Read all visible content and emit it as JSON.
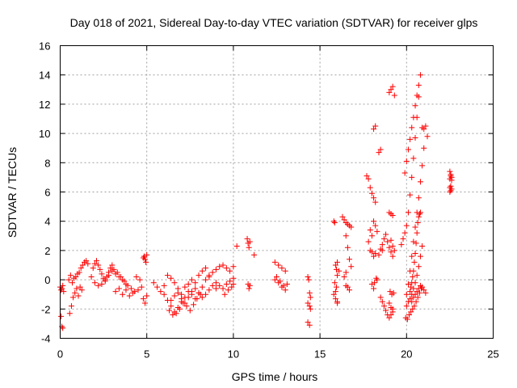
{
  "chart_data": {
    "type": "scatter",
    "title": "Day 018 of 2021, Sidereal Day-to-day VTEC variation (SDTVAR) for receiver glps",
    "xlabel": "GPS time / hours",
    "ylabel": "SDTVAR / TECUs",
    "xlim": [
      0,
      25
    ],
    "ylim": [
      -4,
      16
    ],
    "xticks": [
      0,
      5,
      10,
      15,
      20,
      25
    ],
    "yticks": [
      -4,
      -2,
      0,
      2,
      4,
      6,
      8,
      10,
      12,
      14,
      16
    ],
    "grid": true,
    "marker": "+",
    "series": [
      {
        "name": "SDTVAR",
        "color": "#ff0000",
        "x": [
          0.0,
          0.05,
          0.1,
          0.15,
          0.2,
          0.05,
          0.1,
          0.15,
          0.5,
          0.6,
          0.7,
          0.8,
          0.9,
          1.0,
          1.1,
          1.2,
          1.3,
          1.4,
          1.5,
          1.6,
          0.55,
          0.65,
          0.75,
          0.85,
          0.95,
          1.05,
          1.15,
          1.25,
          1.8,
          1.9,
          2.0,
          2.1,
          2.2,
          2.3,
          2.4,
          2.5,
          2.6,
          2.7,
          2.8,
          2.9,
          3.0,
          2.0,
          2.2,
          2.4,
          2.6,
          2.8,
          3.0,
          3.2,
          3.4,
          3.6,
          3.8,
          3.1,
          3.3,
          3.5,
          3.7,
          3.9,
          4.1,
          4.3,
          4.5,
          4.7,
          3.2,
          3.4,
          3.6,
          3.8,
          4.0,
          4.2,
          4.4,
          4.6,
          4.8,
          4.85,
          4.9,
          4.95,
          5.0,
          4.8,
          4.9,
          5.0,
          5.4,
          5.6,
          5.8,
          6.0,
          6.2,
          6.4,
          6.6,
          6.8,
          7.0,
          7.2,
          7.4,
          7.6,
          7.8,
          8.0,
          8.2,
          8.4,
          6.0,
          6.2,
          6.4,
          6.6,
          6.8,
          7.0,
          7.2,
          7.4,
          7.6,
          7.8,
          8.0,
          8.2,
          8.4,
          8.6,
          6.3,
          6.5,
          6.7,
          6.9,
          7.1,
          7.3,
          7.5,
          7.7,
          7.9,
          8.1,
          6.4,
          6.6,
          6.8,
          7.0,
          7.2,
          7.4,
          7.6,
          7.8,
          8.0,
          8.2,
          8.4,
          8.6,
          8.8,
          9.0,
          8.6,
          8.8,
          9.0,
          9.2,
          9.4,
          9.6,
          9.8,
          10.0,
          9.0,
          9.2,
          9.4,
          9.6,
          9.8,
          10.0,
          9.5,
          9.7,
          9.9,
          10.0,
          10.2,
          10.8,
          10.85,
          10.9,
          10.95,
          10.85,
          10.9,
          10.95,
          11.2,
          12.4,
          12.6,
          12.8,
          13.0,
          12.5,
          12.7,
          12.9,
          12.4,
          12.6,
          12.8,
          13.0,
          13.1,
          14.3,
          14.35,
          14.4,
          14.45,
          14.3,
          14.4,
          14.45,
          14.3,
          14.4,
          15.8,
          15.85,
          15.9,
          15.95,
          16.0,
          15.8,
          15.9,
          16.0,
          15.85,
          15.95,
          16.0,
          16.1,
          15.9,
          16.0,
          16.3,
          16.4,
          16.5,
          16.6,
          16.7,
          16.8,
          16.5,
          16.6,
          16.7,
          16.8,
          16.5,
          16.6,
          16.7,
          16.4,
          16.5,
          17.7,
          17.8,
          17.9,
          18.0,
          17.8,
          17.9,
          18.0,
          18.1,
          17.9,
          18.0,
          18.1,
          18.2,
          18.1,
          18.2,
          18.3,
          18.1,
          18.2,
          18.0,
          18.1,
          18.2,
          18.3,
          18.15,
          18.25,
          18.4,
          18.5,
          18.6,
          18.4,
          18.5,
          18.6,
          18.7,
          18.8,
          18.9,
          19.0,
          19.1,
          19.2,
          18.5,
          18.6,
          18.7,
          18.8,
          18.9,
          19.0,
          19.1,
          19.2,
          19.0,
          19.1,
          19.2,
          19.3,
          19.0,
          19.1,
          19.2,
          19.05,
          19.15,
          19.25,
          19.1,
          19.2,
          19.3,
          19.0,
          19.1,
          19.2,
          19.7,
          19.8,
          19.9,
          20.0,
          20.1,
          20.2,
          20.3,
          20.4,
          20.5,
          20.6,
          20.7,
          19.9,
          20.0,
          20.1,
          20.2,
          20.3,
          20.4,
          20.5,
          20.6,
          20.7,
          20.8,
          20.9,
          21.0,
          21.1,
          21.2,
          20.0,
          20.1,
          20.2,
          20.3,
          20.4,
          20.5,
          20.6,
          20.7,
          20.8,
          20.9,
          21.0,
          19.95,
          20.05,
          20.15,
          20.25,
          20.35,
          20.45,
          20.55,
          20.65,
          20.75,
          20.85,
          20.0,
          20.1,
          20.2,
          20.3,
          20.4,
          20.5,
          20.6,
          20.7,
          20.8,
          20.9,
          20.2,
          20.25,
          20.3,
          20.35,
          20.4,
          20.45,
          20.5,
          20.55,
          20.6,
          20.65,
          20.7,
          20.75,
          20.8,
          20.3,
          20.4,
          20.5,
          20.6,
          20.7,
          20.8,
          20.9,
          21.0,
          21.1,
          22.5,
          22.55,
          22.6,
          22.5,
          22.55,
          22.6,
          22.5,
          22.55,
          22.6,
          22.5,
          22.55
        ],
        "y": [
          -0.5,
          -0.7,
          -0.6,
          -0.4,
          -0.8,
          -2.5,
          -3.2,
          -3.3,
          0.0,
          0.3,
          -0.2,
          0.1,
          0.2,
          0.4,
          0.5,
          0.8,
          1.0,
          1.2,
          1.3,
          1.1,
          -2.3,
          -1.8,
          -1.2,
          -0.9,
          -0.6,
          -1.1,
          -0.5,
          -0.7,
          0.2,
          0.8,
          1.1,
          1.3,
          1.0,
          0.7,
          0.4,
          0.1,
          -0.1,
          0.2,
          0.5,
          0.8,
          1.0,
          -0.2,
          -0.4,
          -0.3,
          0.0,
          0.3,
          0.6,
          0.4,
          0.2,
          0.0,
          -0.3,
          0.7,
          0.5,
          0.2,
          -0.1,
          -0.4,
          -0.6,
          -0.8,
          -0.7,
          -0.5,
          -0.8,
          -0.6,
          -1.0,
          -0.7,
          -1.1,
          -0.9,
          0.2,
          0.0,
          1.5,
          1.6,
          1.4,
          1.2,
          1.7,
          -1.3,
          -1.6,
          -1.1,
          -0.2,
          -0.5,
          -0.8,
          -0.4,
          0.3,
          0.1,
          -0.2,
          -0.6,
          -1.0,
          -0.5,
          -0.3,
          0.0,
          -0.2,
          0.3,
          0.6,
          0.8,
          -1.0,
          -1.4,
          -1.8,
          -2.2,
          -1.9,
          -1.5,
          -1.2,
          -0.8,
          -1.0,
          -1.3,
          -0.9,
          -0.5,
          0.0,
          0.2,
          -2.1,
          -2.4,
          -2.3,
          -2.0,
          -1.6,
          -1.8,
          -2.1,
          -1.7,
          -1.3,
          -1.0,
          -1.4,
          -1.1,
          -0.9,
          -1.3,
          -1.6,
          -1.2,
          -0.8,
          -0.6,
          -0.9,
          -1.2,
          -1.0,
          -0.7,
          -0.4,
          -0.6,
          0.3,
          0.5,
          0.7,
          0.9,
          1.0,
          0.8,
          0.6,
          0.9,
          -0.2,
          -0.4,
          -0.6,
          -0.3,
          -0.1,
          0.1,
          -1.0,
          -0.7,
          -0.5,
          -0.3,
          2.3,
          2.8,
          2.5,
          2.2,
          2.6,
          -0.3,
          -0.6,
          -0.4,
          1.7,
          1.2,
          1.0,
          0.8,
          0.6,
          0.2,
          -0.1,
          -0.4,
          0.0,
          -0.2,
          -0.5,
          -0.7,
          -0.3,
          0.2,
          0.0,
          -0.9,
          -1.2,
          -1.6,
          -1.8,
          -2.0,
          -2.9,
          -3.1,
          4.0,
          3.9,
          1.0,
          0.7,
          1.2,
          -1.0,
          -1.3,
          -1.6,
          -0.2,
          -0.5,
          0.3,
          0.6,
          -0.8,
          -1.5,
          4.3,
          4.1,
          3.9,
          3.8,
          3.7,
          3.6,
          3.0,
          2.2,
          1.4,
          0.9,
          0.5,
          -0.5,
          -0.7,
          0.2,
          -0.4,
          7.1,
          6.9,
          3.4,
          3.0,
          2.6,
          2.0,
          -0.3,
          -0.6,
          6.3,
          5.9,
          5.6,
          5.3,
          4.0,
          3.7,
          3.3,
          10.3,
          10.5,
          1.9,
          1.6,
          1.8,
          0.0,
          -0.2,
          0.1,
          8.7,
          8.9,
          2.0,
          1.7,
          2.1,
          2.4,
          2.8,
          3.1,
          2.6,
          2.2,
          1.9,
          1.6,
          -1.2,
          -1.5,
          -1.8,
          -2.1,
          -2.4,
          -2.6,
          -2.4,
          -2.0,
          12.8,
          13.0,
          13.2,
          12.6,
          4.6,
          4.5,
          4.4,
          -0.8,
          -1.0,
          -0.9,
          2.7,
          2.3,
          2.0,
          -1.6,
          -1.9,
          -2.2,
          2.4,
          2.8,
          3.2,
          3.7,
          4.6,
          5.8,
          7.0,
          8.3,
          9.7,
          11.1,
          12.5,
          7.3,
          8.1,
          8.9,
          9.6,
          10.4,
          11.1,
          11.9,
          12.6,
          13.3,
          14.0,
          10.4,
          10.3,
          10.5,
          9.8,
          -1.0,
          -0.3,
          0.6,
          1.6,
          2.6,
          3.6,
          4.6,
          5.6,
          6.7,
          7.8,
          9.0,
          -2.6,
          -2.7,
          -2.4,
          -2.2,
          -2.0,
          -1.8,
          -1.5,
          -1.2,
          -0.9,
          -0.6,
          -1.8,
          -1.5,
          -1.3,
          -1.0,
          -0.6,
          -0.2,
          0.3,
          0.9,
          1.6,
          2.3,
          -0.8,
          -0.5,
          -0.2,
          0.2,
          0.6,
          1.2,
          1.8,
          2.5,
          3.2,
          3.9,
          4.3,
          4.5,
          4.6,
          -1.5,
          -1.2,
          -1.0,
          -0.8,
          -0.6,
          -0.4,
          -0.5,
          -0.7,
          -0.9,
          7.4,
          7.2,
          7.0,
          6.9,
          7.1,
          6.8,
          6.3,
          6.1,
          6.2,
          6.0,
          6.4
        ]
      }
    ]
  }
}
